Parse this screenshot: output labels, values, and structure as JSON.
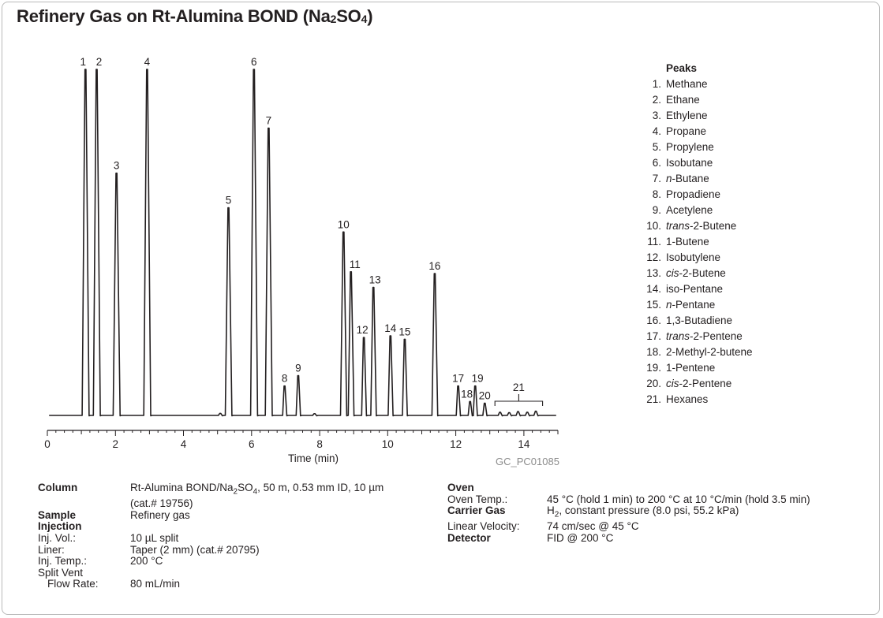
{
  "title": {
    "main": "Refinery Gas on Rt-Alumina BOND (Na",
    "sub": "2",
    "main2": "SO",
    "sub2": "4",
    "close": ")"
  },
  "chart_data": {
    "type": "line",
    "title": "Refinery Gas on Rt-Alumina BOND (Na2SO4)",
    "xlabel": "Time (min)",
    "ylabel": "",
    "xlim": [
      0,
      15
    ],
    "x_ticks": [
      0,
      2,
      4,
      6,
      8,
      10,
      12,
      14
    ],
    "tick_labels": [
      "0",
      "2",
      "4",
      "6",
      "8",
      "10",
      "12",
      "14"
    ],
    "ylim": [
      0,
      100
    ],
    "grid": false,
    "series": [
      {
        "peaks": [
          {
            "label": "1",
            "rt": 1.12,
            "height": 100
          },
          {
            "label": "2",
            "rt": 1.45,
            "height": 100
          },
          {
            "label": "3",
            "rt": 2.03,
            "height": 70
          },
          {
            "label": "4",
            "rt": 2.93,
            "height": 100
          },
          {
            "label": "5",
            "rt": 5.32,
            "height": 60
          },
          {
            "label": "6",
            "rt": 6.07,
            "height": 100
          },
          {
            "label": "7",
            "rt": 6.5,
            "height": 83
          },
          {
            "label": "8",
            "rt": 6.97,
            "height": 8.5
          },
          {
            "label": "9",
            "rt": 7.37,
            "height": 11.5
          },
          {
            "label": "10",
            "rt": 8.7,
            "height": 53
          },
          {
            "label": "11",
            "rt": 8.92,
            "height": 41.5
          },
          {
            "label": "12",
            "rt": 9.3,
            "height": 22.5
          },
          {
            "label": "13",
            "rt": 9.58,
            "height": 37
          },
          {
            "label": "14",
            "rt": 10.08,
            "height": 23
          },
          {
            "label": "15",
            "rt": 10.5,
            "height": 22
          },
          {
            "label": "16",
            "rt": 11.38,
            "height": 41
          },
          {
            "label": "17",
            "rt": 12.07,
            "height": 8.5
          },
          {
            "label": "18",
            "rt": 12.42,
            "height": 4
          },
          {
            "label": "19",
            "rt": 12.57,
            "height": 8.5
          },
          {
            "label": "20",
            "rt": 12.85,
            "height": 3.5
          }
        ],
        "hexanes_range": [
          13.15,
          14.55
        ]
      }
    ],
    "annotations": [
      {
        "label": "21",
        "text": "Hexanes group bracket",
        "x_range": [
          13.15,
          14.55
        ]
      }
    ]
  },
  "peaks_legend": {
    "heading": "Peaks",
    "items": [
      {
        "num": "1.",
        "name": "Methane"
      },
      {
        "num": "2.",
        "name": "Ethane"
      },
      {
        "num": "3.",
        "name": "Ethylene"
      },
      {
        "num": "4.",
        "name": "Propane"
      },
      {
        "num": "5.",
        "name": "Propylene"
      },
      {
        "num": "6.",
        "name": "Isobutane"
      },
      {
        "num": "7.",
        "prefix": "n",
        "name": "-Butane"
      },
      {
        "num": "8.",
        "name": "Propadiene"
      },
      {
        "num": "9.",
        "name": "Acetylene"
      },
      {
        "num": "10.",
        "prefix": "trans",
        "name": "-2-Butene"
      },
      {
        "num": "11.",
        "name": "1-Butene"
      },
      {
        "num": "12.",
        "name": "Isobutylene"
      },
      {
        "num": "13.",
        "prefix": "cis",
        "name": "-2-Butene"
      },
      {
        "num": "14.",
        "name": "iso-Pentane"
      },
      {
        "num": "15.",
        "prefix": "n",
        "name": "-Pentane"
      },
      {
        "num": "16.",
        "name": "1,3-Butadiene"
      },
      {
        "num": "17.",
        "prefix": "trans",
        "name": "-2-Pentene"
      },
      {
        "num": "18.",
        "name": "2-Methyl-2-butene"
      },
      {
        "num": "19.",
        "name": "1-Pentene"
      },
      {
        "num": "20.",
        "prefix": "cis",
        "name": "-2-Pentene"
      },
      {
        "num": "21.",
        "name": "Hexanes"
      }
    ]
  },
  "figure_code": "GC_PC01085",
  "conditions_left": {
    "column_key": "Column",
    "column_val_a": "Rt-Alumina BOND/Na",
    "column_val_sub": "2",
    "column_val_b": "SO",
    "column_val_sub2": "4",
    "column_val_c": ", 50 m, 0.53 mm ID, 10 µm (cat.# 19756)",
    "sample_key": "Sample",
    "sample_val": "Refinery gas",
    "injection_key": "Injection",
    "injvol_key": "Inj. Vol.:",
    "injvol_val": "10 µL split",
    "liner_key": "Liner:",
    "liner_val": "Taper (2 mm) (cat.# 20795)",
    "injtemp_key": "Inj. Temp.:",
    "injtemp_val": "200 °C",
    "splitvent_key": "Split Vent",
    "flowrate_key": "Flow Rate:",
    "flowrate_val": "80 mL/min"
  },
  "conditions_right": {
    "oven_key": "Oven",
    "oventemp_key": "Oven Temp.:",
    "oventemp_val": "45 °C (hold 1 min) to 200 °C at 10 °C/min (hold 3.5 min)",
    "carrier_key": "Carrier Gas",
    "carrier_val_a": "H",
    "carrier_val_sub": "2",
    "carrier_val_b": ", constant pressure (8.0 psi, 55.2 kPa)",
    "linvel_key": "Linear Velocity:",
    "linvel_val": "74 cm/sec @ 45 °C",
    "detector_key": "Detector",
    "detector_val": "FID @ 200 °C"
  }
}
